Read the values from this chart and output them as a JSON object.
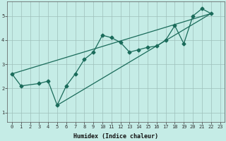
{
  "xlabel": "Humidex (Indice chaleur)",
  "ylabel": "",
  "bg_color": "#c5ece6",
  "grid_color": "#9dbfba",
  "line_color": "#1a6b5a",
  "xlim": [
    -0.5,
    23.5
  ],
  "ylim": [
    0.6,
    5.6
  ],
  "xticks": [
    0,
    1,
    2,
    3,
    4,
    5,
    6,
    7,
    8,
    9,
    10,
    11,
    12,
    13,
    14,
    15,
    16,
    17,
    18,
    19,
    20,
    21,
    22,
    23
  ],
  "yticks": [
    1,
    2,
    3,
    4,
    5
  ],
  "series1_x": [
    0,
    1,
    3,
    4,
    5,
    6,
    7,
    8,
    9,
    10,
    11,
    12,
    13,
    14,
    15,
    16,
    17,
    18,
    19,
    20,
    21,
    22
  ],
  "series1_y": [
    2.6,
    2.1,
    2.2,
    2.3,
    1.3,
    2.1,
    2.6,
    3.2,
    3.5,
    4.2,
    4.1,
    3.9,
    3.5,
    3.6,
    3.7,
    3.75,
    4.0,
    4.6,
    3.85,
    5.0,
    5.3,
    5.1
  ],
  "series2_x": [
    0,
    22
  ],
  "series2_y": [
    2.6,
    5.1
  ],
  "series3_x": [
    5,
    22
  ],
  "series3_y": [
    1.3,
    5.1
  ],
  "marker_size": 2.5,
  "line_width": 0.9,
  "tick_fontsize": 5.0,
  "xlabel_fontsize": 6.0
}
